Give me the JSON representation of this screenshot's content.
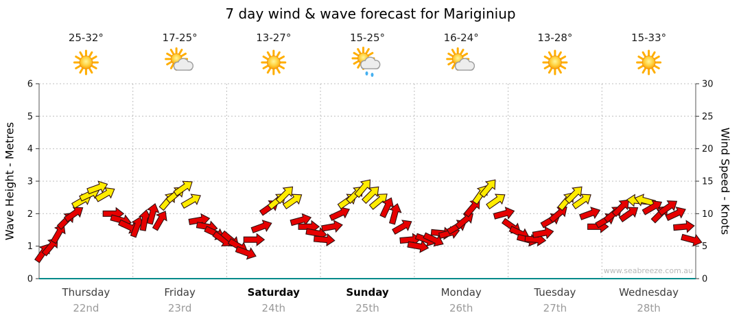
{
  "title": "7 day wind & wave forecast for Mariginiup",
  "watermark": "www.seabreeze.com.au",
  "days": [
    {
      "name": "Thursday",
      "date": "22nd",
      "temp": "25-32°",
      "icon": "sunny",
      "bold": false
    },
    {
      "name": "Friday",
      "date": "23rd",
      "temp": "17-25°",
      "icon": "partly-cloudy",
      "bold": false
    },
    {
      "name": "Saturday",
      "date": "24th",
      "temp": "13-27°",
      "icon": "sunny",
      "bold": true
    },
    {
      "name": "Sunday",
      "date": "25th",
      "temp": "15-25°",
      "icon": "rain",
      "bold": true
    },
    {
      "name": "Monday",
      "date": "26th",
      "temp": "16-24°",
      "icon": "partly-cloudy",
      "bold": false
    },
    {
      "name": "Tuesday",
      "date": "27th",
      "temp": "13-28°",
      "icon": "sunny",
      "bold": false
    },
    {
      "name": "Wednesday",
      "date": "28th",
      "temp": "15-33°",
      "icon": "sunny",
      "bold": false
    }
  ],
  "axes": {
    "left": {
      "label": "Wave Height - Metres",
      "ticks": [
        0,
        1,
        2,
        3,
        4,
        5,
        6
      ],
      "range": [
        0,
        6
      ]
    },
    "right": {
      "label": "Wind Speed - Knots",
      "ticks": [
        0,
        5,
        10,
        15,
        20,
        25,
        30
      ],
      "range": [
        0,
        30
      ]
    }
  },
  "chart_data": {
    "type": "scatter",
    "marker": "wind-arrow",
    "title": "7 day wind & wave forecast for Mariginiup",
    "ylabel_left": "Wave Height - Metres",
    "ylim_left": [
      0,
      6
    ],
    "ylabel_right": "Wind Speed - Knots",
    "ylim_right": [
      0,
      30
    ],
    "grid": true,
    "points_per_day": 12,
    "yellow_threshold_knots": 12,
    "colors": {
      "red": "#e60000",
      "yellow": "#ffec00",
      "outline": "#301010",
      "axis_bottom": "#008a8a"
    },
    "series": [
      {
        "day": "Thursday",
        "knots": [
          4,
          5,
          7,
          9,
          10,
          12,
          13,
          14,
          13,
          10,
          9,
          8
        ],
        "dir_deg": [
          35,
          40,
          30,
          45,
          55,
          60,
          65,
          70,
          60,
          90,
          105,
          115
        ]
      },
      {
        "day": "Friday",
        "knots": [
          8,
          9,
          10,
          9,
          12,
          13,
          14,
          12,
          9,
          8,
          7,
          6
        ],
        "dir_deg": [
          20,
          10,
          15,
          30,
          40,
          50,
          55,
          60,
          80,
          100,
          115,
          125
        ]
      },
      {
        "day": "Saturday",
        "knots": [
          6,
          5,
          4,
          6,
          8,
          11,
          12,
          13,
          12,
          9,
          8,
          7
        ],
        "dir_deg": [
          130,
          120,
          110,
          90,
          70,
          55,
          50,
          45,
          55,
          75,
          90,
          100
        ]
      },
      {
        "day": "Sunday",
        "knots": [
          6,
          8,
          10,
          12,
          13,
          14,
          13,
          12,
          11,
          10,
          8,
          6
        ],
        "dir_deg": [
          95,
          80,
          65,
          55,
          45,
          40,
          45,
          50,
          25,
          15,
          60,
          85
        ]
      },
      {
        "day": "Monday",
        "knots": [
          5,
          6,
          6,
          7,
          7,
          8,
          9,
          11,
          13,
          14,
          12,
          10
        ],
        "dir_deg": [
          100,
          110,
          115,
          95,
          75,
          60,
          50,
          40,
          35,
          40,
          55,
          75
        ]
      },
      {
        "day": "Tuesday",
        "knots": [
          8,
          7,
          6,
          6,
          7,
          9,
          10,
          12,
          13,
          12,
          10,
          8
        ],
        "dir_deg": [
          125,
          115,
          105,
          95,
          80,
          60,
          50,
          40,
          45,
          55,
          70,
          90
        ]
      },
      {
        "day": "Wednesday",
        "knots": [
          9,
          10,
          11,
          10,
          12,
          12,
          11,
          10,
          11,
          10,
          8,
          6
        ],
        "dir_deg": [
          60,
          50,
          45,
          55,
          275,
          285,
          60,
          45,
          55,
          65,
          85,
          105
        ]
      }
    ]
  }
}
